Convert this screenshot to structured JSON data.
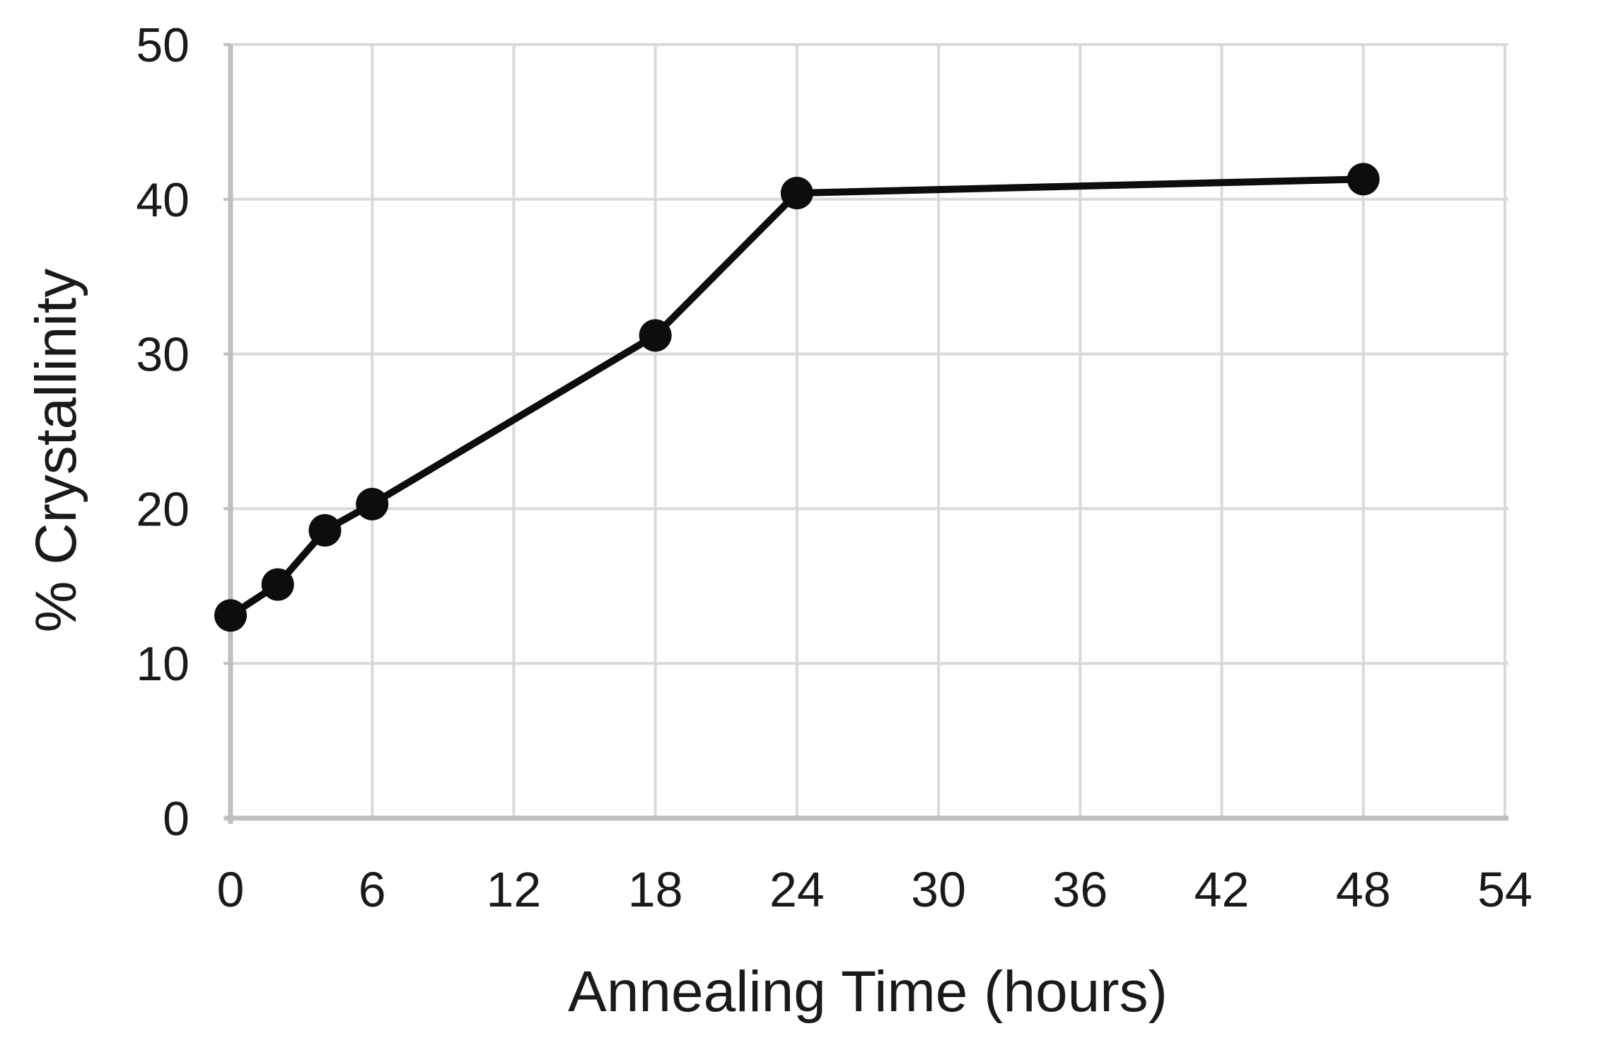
{
  "page": {
    "background": "#ffffff"
  },
  "chart_data": {
    "type": "line",
    "title": "",
    "xlabel": "Annealing Time (hours)",
    "ylabel": "% Crystallinity",
    "series": [
      {
        "name": "percent-crystallinity",
        "x": [
          0,
          2,
          4,
          6,
          18,
          24,
          48
        ],
        "y": [
          13.1,
          15.1,
          18.6,
          20.3,
          31.2,
          40.4,
          41.3
        ]
      }
    ],
    "xlim": [
      0,
      54
    ],
    "ylim": [
      0,
      50
    ],
    "x_ticks": [
      "0",
      "6",
      "12",
      "18",
      "24",
      "30",
      "36",
      "42",
      "48",
      "54"
    ],
    "y_ticks": [
      "0",
      "10",
      "20",
      "30",
      "40",
      "50"
    ],
    "grid": true,
    "legend": false,
    "marker": "circle",
    "colors": {
      "series": "#0d0d0d",
      "gridline": "#d9d9d9",
      "axis_line": "#bfbfbf",
      "text": "#1a1a1a",
      "background": "#ffffff"
    }
  }
}
